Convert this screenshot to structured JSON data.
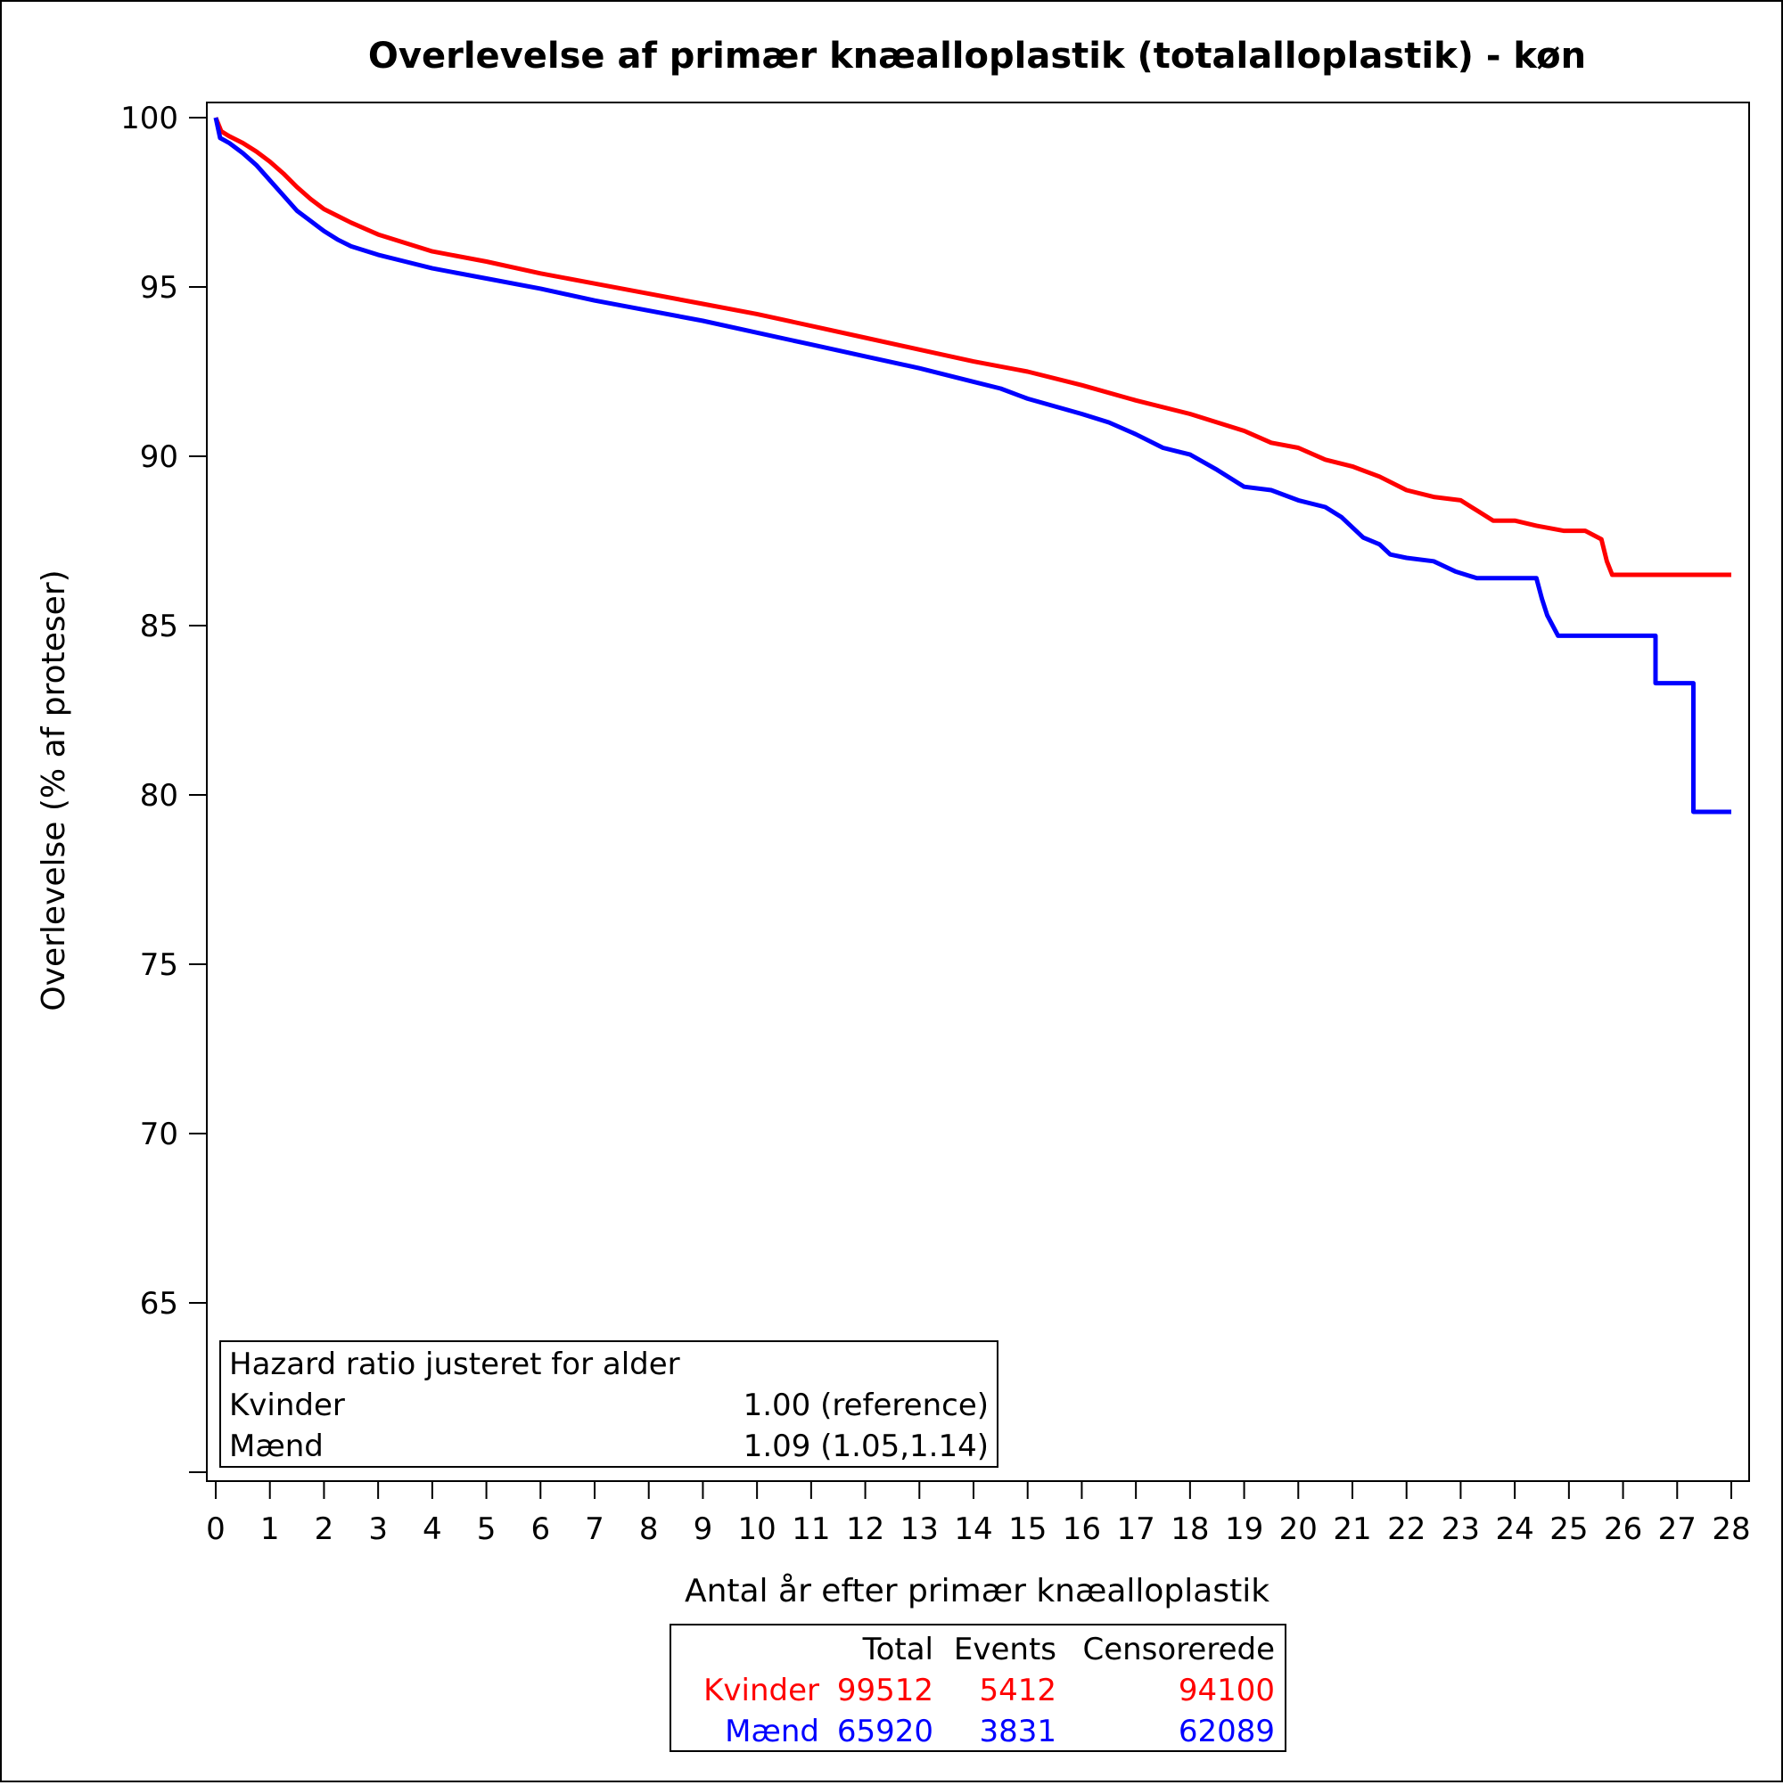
{
  "chart_data": {
    "type": "line",
    "title": "Overlevelse af primær knæalloplastik (totalalloplastik) - køn",
    "xlabel": "Antal år efter primær knæalloplastik",
    "ylabel": "Overlevelse (% af proteser)",
    "xlim": [
      0,
      28
    ],
    "ylim": [
      60,
      100
    ],
    "x_ticks": [
      0,
      1,
      2,
      3,
      4,
      5,
      6,
      7,
      8,
      9,
      10,
      11,
      12,
      13,
      14,
      15,
      16,
      17,
      18,
      19,
      20,
      21,
      22,
      23,
      24,
      25,
      26,
      27,
      28
    ],
    "y_ticks": [
      65,
      70,
      75,
      80,
      85,
      90,
      95,
      100
    ],
    "grid": false,
    "series": [
      {
        "name": "Kvinder",
        "color": "#ff0000",
        "points": [
          [
            0,
            100
          ],
          [
            0.1,
            99.6
          ],
          [
            0.25,
            99.45
          ],
          [
            0.5,
            99.25
          ],
          [
            0.75,
            99.0
          ],
          [
            1.0,
            98.7
          ],
          [
            1.25,
            98.35
          ],
          [
            1.5,
            97.95
          ],
          [
            1.75,
            97.6
          ],
          [
            2.0,
            97.3
          ],
          [
            2.5,
            96.9
          ],
          [
            3.0,
            96.55
          ],
          [
            3.5,
            96.3
          ],
          [
            4.0,
            96.05
          ],
          [
            5.0,
            95.75
          ],
          [
            6.0,
            95.4
          ],
          [
            7.0,
            95.1
          ],
          [
            8.0,
            94.8
          ],
          [
            9.0,
            94.5
          ],
          [
            10.0,
            94.2
          ],
          [
            11.0,
            93.85
          ],
          [
            12.0,
            93.5
          ],
          [
            13.0,
            93.15
          ],
          [
            14.0,
            92.8
          ],
          [
            15.0,
            92.5
          ],
          [
            16.0,
            92.1
          ],
          [
            17.0,
            91.65
          ],
          [
            18.0,
            91.25
          ],
          [
            19.0,
            90.75
          ],
          [
            19.5,
            90.4
          ],
          [
            20.0,
            90.25
          ],
          [
            20.5,
            89.9
          ],
          [
            21.0,
            89.7
          ],
          [
            21.5,
            89.4
          ],
          [
            22.0,
            89.0
          ],
          [
            22.5,
            88.8
          ],
          [
            23.0,
            88.7
          ],
          [
            23.3,
            88.4
          ],
          [
            23.6,
            88.1
          ],
          [
            24.0,
            88.1
          ],
          [
            24.4,
            87.95
          ],
          [
            24.9,
            87.8
          ],
          [
            25.3,
            87.8
          ],
          [
            25.6,
            87.55
          ],
          [
            25.7,
            86.9
          ],
          [
            25.8,
            86.5
          ],
          [
            28.0,
            86.5
          ]
        ]
      },
      {
        "name": "Mænd",
        "color": "#0000ff",
        "points": [
          [
            0,
            100
          ],
          [
            0.08,
            99.4
          ],
          [
            0.25,
            99.25
          ],
          [
            0.5,
            98.95
          ],
          [
            0.75,
            98.6
          ],
          [
            1.0,
            98.15
          ],
          [
            1.25,
            97.7
          ],
          [
            1.5,
            97.25
          ],
          [
            1.75,
            96.95
          ],
          [
            2.0,
            96.65
          ],
          [
            2.25,
            96.4
          ],
          [
            2.5,
            96.2
          ],
          [
            3.0,
            95.95
          ],
          [
            3.5,
            95.75
          ],
          [
            4.0,
            95.55
          ],
          [
            5.0,
            95.25
          ],
          [
            6.0,
            94.95
          ],
          [
            7.0,
            94.6
          ],
          [
            8.0,
            94.3
          ],
          [
            9.0,
            94.0
          ],
          [
            10.0,
            93.65
          ],
          [
            11.0,
            93.3
          ],
          [
            12.0,
            92.95
          ],
          [
            13.0,
            92.6
          ],
          [
            14.0,
            92.2
          ],
          [
            14.5,
            92.0
          ],
          [
            15.0,
            91.7
          ],
          [
            16.0,
            91.25
          ],
          [
            16.5,
            91.0
          ],
          [
            17.0,
            90.65
          ],
          [
            17.5,
            90.25
          ],
          [
            18.0,
            90.05
          ],
          [
            18.5,
            89.6
          ],
          [
            19.0,
            89.1
          ],
          [
            19.5,
            89.0
          ],
          [
            20.0,
            88.7
          ],
          [
            20.5,
            88.5
          ],
          [
            20.8,
            88.2
          ],
          [
            21.0,
            87.9
          ],
          [
            21.2,
            87.6
          ],
          [
            21.5,
            87.4
          ],
          [
            21.7,
            87.1
          ],
          [
            22.0,
            87.0
          ],
          [
            22.5,
            86.9
          ],
          [
            22.9,
            86.6
          ],
          [
            23.3,
            86.4
          ],
          [
            24.4,
            86.4
          ],
          [
            24.5,
            85.8
          ],
          [
            24.6,
            85.3
          ],
          [
            24.8,
            84.7
          ],
          [
            26.6,
            84.7
          ],
          [
            26.6,
            83.3
          ],
          [
            27.3,
            83.3
          ],
          [
            27.3,
            79.5
          ],
          [
            28.0,
            79.5
          ]
        ]
      }
    ],
    "inset_legend": {
      "heading": "Hazard ratio justeret for alder",
      "rows": [
        {
          "label": "Kvinder",
          "value": "1.00 (reference)"
        },
        {
          "label": "Mænd",
          "value": "1.09 (1.05,1.14)"
        }
      ]
    },
    "summary_table": {
      "headers": [
        "",
        "Total",
        "Events",
        "Censorerede"
      ],
      "rows": [
        {
          "group": "Kvinder",
          "total": "99512",
          "events": "5412",
          "censored": "94100",
          "color": "#ff0000"
        },
        {
          "group": "Mænd",
          "total": "65920",
          "events": "3831",
          "censored": "62089",
          "color": "#0000ff"
        }
      ]
    }
  }
}
